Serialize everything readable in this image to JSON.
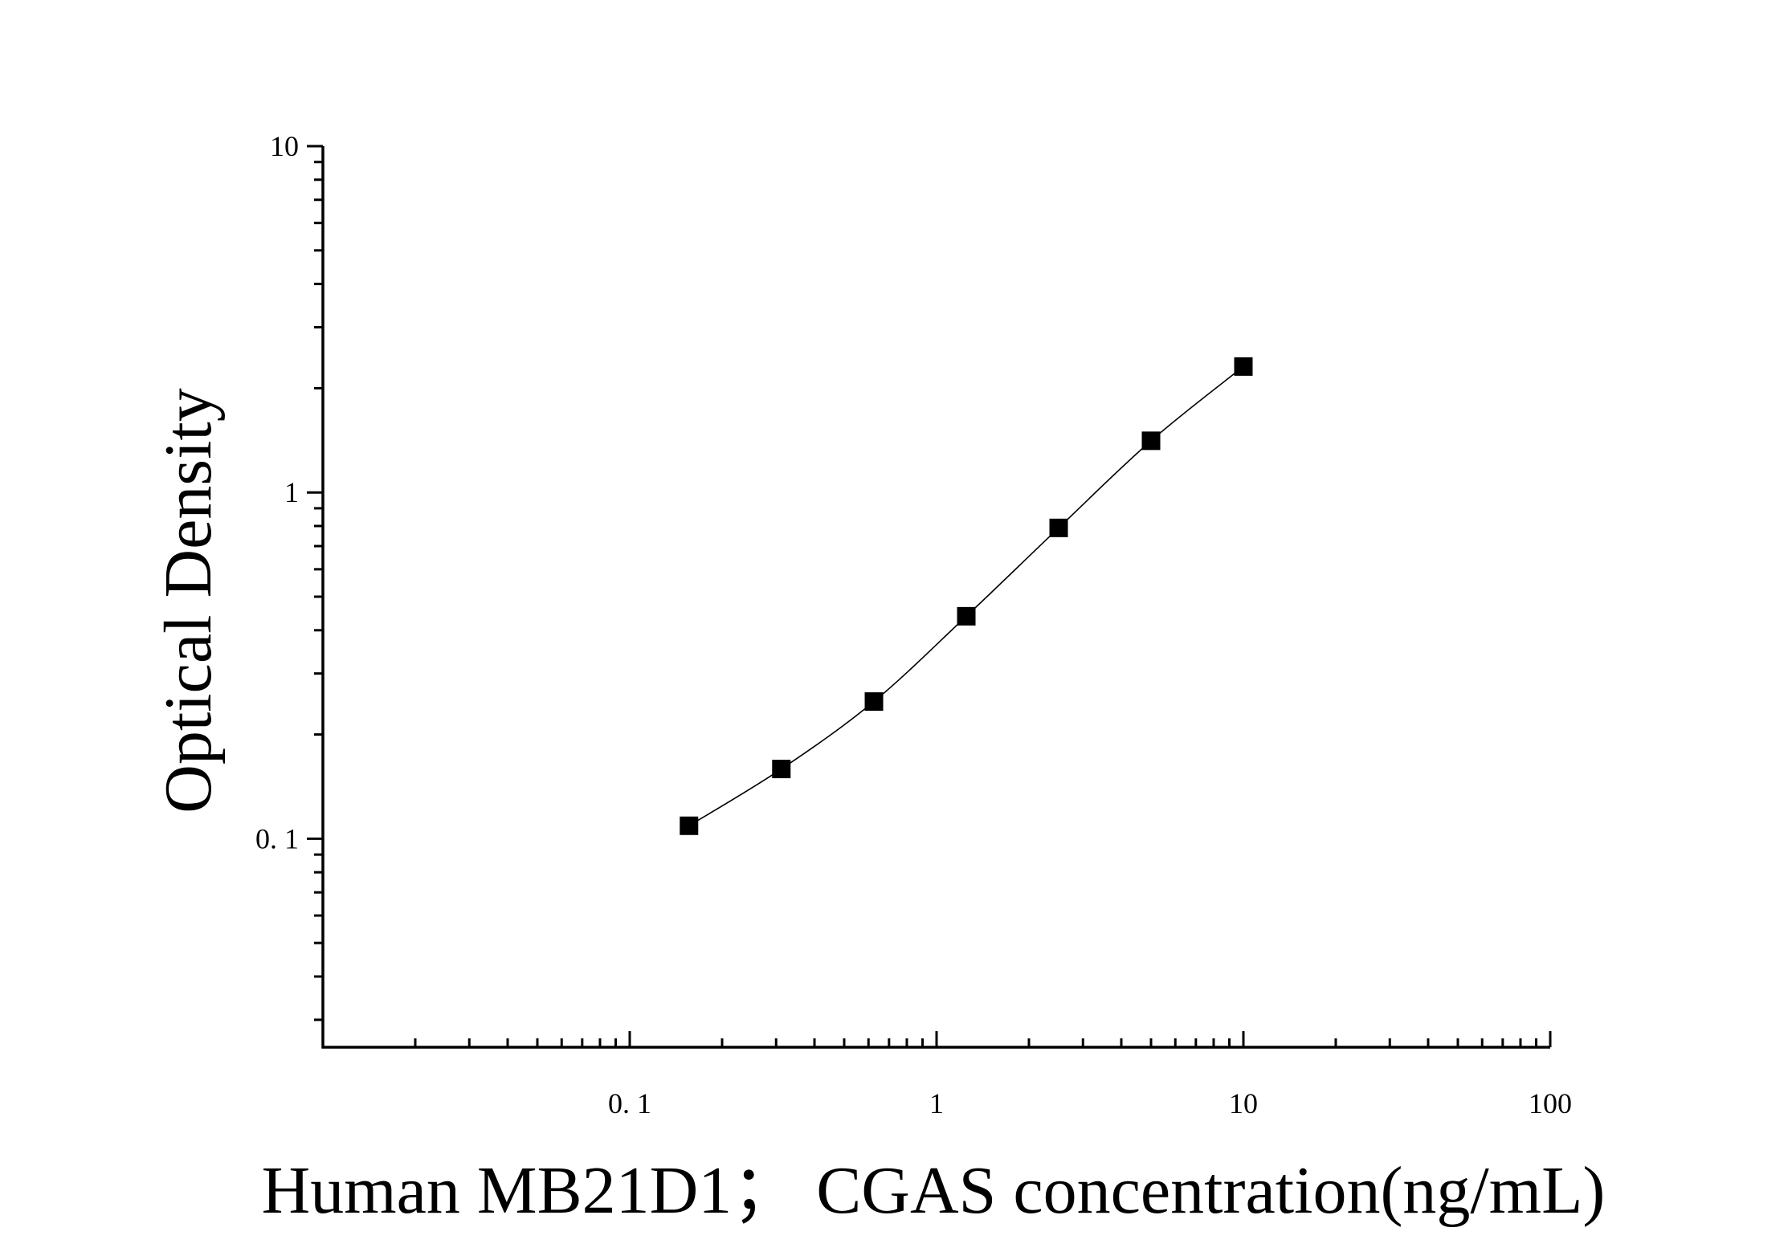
{
  "chart_data": {
    "type": "scatter",
    "xlabel": "Human MB21D1；  CGAS concentration(ng/mL)",
    "ylabel": "Optical Density",
    "x_scale": "log",
    "y_scale": "log",
    "xlim": [
      0.01,
      100
    ],
    "ylim": [
      0.025,
      10
    ],
    "x_ticks": [
      0.1,
      1,
      10,
      100
    ],
    "x_tick_labels": [
      "0. 1",
      "1",
      "10",
      "100"
    ],
    "y_ticks": [
      0.1,
      1,
      10
    ],
    "y_tick_labels": [
      "0. 1",
      "1",
      "10"
    ],
    "grid": false,
    "legend": "none",
    "series": [
      {
        "marker": "square",
        "fit_line": true,
        "points": [
          {
            "x": 0.156,
            "y": 0.109
          },
          {
            "x": 0.312,
            "y": 0.159
          },
          {
            "x": 0.625,
            "y": 0.249
          },
          {
            "x": 1.25,
            "y": 0.439
          },
          {
            "x": 2.5,
            "y": 0.79
          },
          {
            "x": 5,
            "y": 1.41
          },
          {
            "x": 10,
            "y": 2.31
          }
        ]
      }
    ],
    "colors": {
      "marker": "#000000",
      "line": "#000000",
      "axis": "#000000"
    }
  }
}
